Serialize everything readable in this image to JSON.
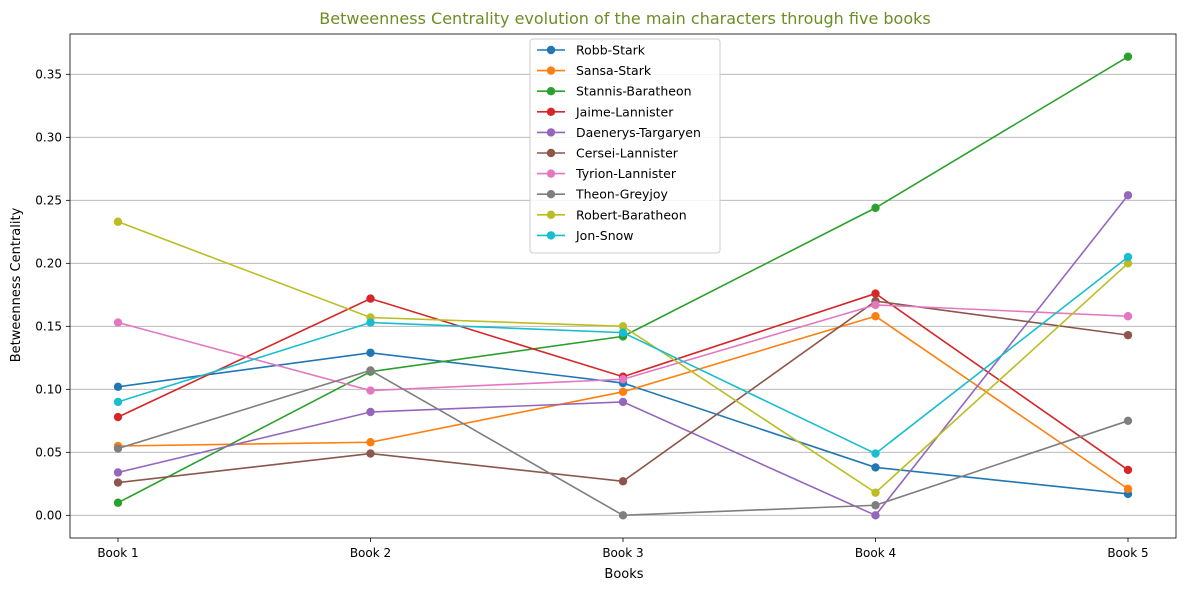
{
  "chart_data": {
    "type": "line",
    "title": "Betweenness Centrality evolution of the main characters through five books",
    "title_color": "#6b8e23",
    "xlabel": "Books",
    "ylabel": "Betweenness Centrality",
    "categories": [
      "Book 1",
      "Book 2",
      "Book 3",
      "Book 4",
      "Book 5"
    ],
    "ylim": [
      -0.018,
      0.382
    ],
    "yticks": [
      0.0,
      0.05,
      0.1,
      0.15,
      0.2,
      0.25,
      0.3,
      0.35
    ],
    "ytick_labels": [
      "0.00",
      "0.05",
      "0.10",
      "0.15",
      "0.20",
      "0.25",
      "0.30",
      "0.35"
    ],
    "grid": "horizontal",
    "legend_position": "upper-center",
    "series": [
      {
        "name": "Robb-Stark",
        "color": "#1f77b4",
        "values": [
          0.102,
          0.129,
          0.105,
          0.038,
          0.017
        ]
      },
      {
        "name": "Sansa-Stark",
        "color": "#ff7f0e",
        "values": [
          0.055,
          0.058,
          0.098,
          0.158,
          0.021
        ]
      },
      {
        "name": "Stannis-Baratheon",
        "color": "#2ca02c",
        "values": [
          0.01,
          0.114,
          0.142,
          0.244,
          0.364
        ]
      },
      {
        "name": "Jaime-Lannister",
        "color": "#d62728",
        "values": [
          0.078,
          0.172,
          0.11,
          0.176,
          0.036
        ]
      },
      {
        "name": "Daenerys-Targaryen",
        "color": "#9467bd",
        "values": [
          0.034,
          0.082,
          0.09,
          0.0,
          0.254
        ]
      },
      {
        "name": "Cersei-Lannister",
        "color": "#8c564b",
        "values": [
          0.026,
          0.049,
          0.027,
          0.17,
          0.143
        ]
      },
      {
        "name": "Tyrion-Lannister",
        "color": "#e377c2",
        "values": [
          0.153,
          0.099,
          0.108,
          0.167,
          0.158
        ]
      },
      {
        "name": "Theon-Greyjoy",
        "color": "#7f7f7f",
        "values": [
          0.053,
          0.115,
          0.0,
          0.008,
          0.075
        ]
      },
      {
        "name": "Robert-Baratheon",
        "color": "#bcbd22",
        "values": [
          0.233,
          0.157,
          0.15,
          0.018,
          0.2
        ]
      },
      {
        "name": "Jon-Snow",
        "color": "#17becf",
        "values": [
          0.09,
          0.153,
          0.145,
          0.049,
          0.205
        ]
      }
    ]
  }
}
